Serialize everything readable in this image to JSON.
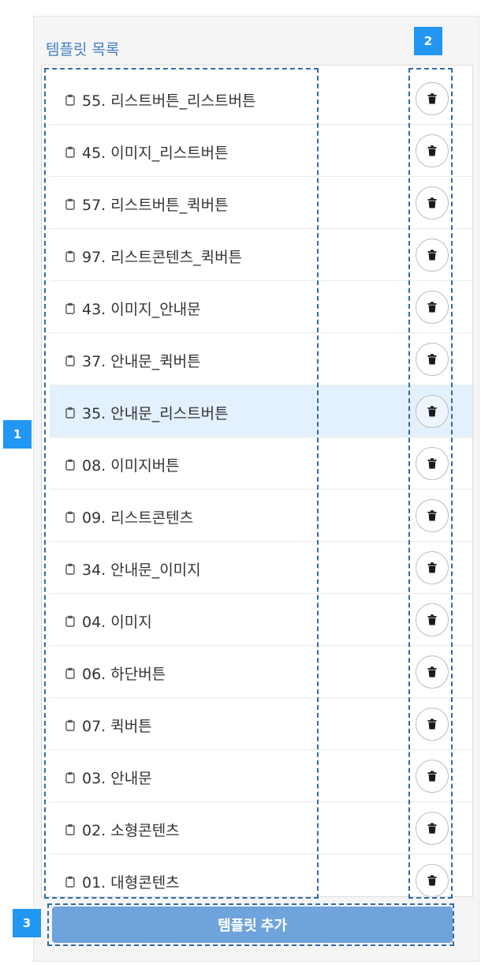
{
  "panel": {
    "title": "템플릿 목록",
    "add_label": "템플릿 추가"
  },
  "icons": {
    "item": "clipboard-icon",
    "delete": "trash-icon"
  },
  "colors": {
    "title": "#3f80c4",
    "add_button": "#6fa3dc",
    "selected_row": "#e3f0fd",
    "annotation": "#2f6aa8",
    "badge": "#2196f3"
  },
  "templates": [
    {
      "label": "55. 리스트버튼_리스트버튼",
      "selected": false
    },
    {
      "label": "45. 이미지_리스트버튼",
      "selected": false
    },
    {
      "label": "57. 리스트버튼_퀵버튼",
      "selected": false
    },
    {
      "label": "97. 리스트콘텐츠_퀵버튼",
      "selected": false
    },
    {
      "label": "43. 이미지_안내문",
      "selected": false
    },
    {
      "label": "37. 안내문_퀵버튼",
      "selected": false
    },
    {
      "label": "35. 안내문_리스트버튼",
      "selected": true
    },
    {
      "label": "08. 이미지버튼",
      "selected": false
    },
    {
      "label": "09. 리스트콘텐츠",
      "selected": false
    },
    {
      "label": "34. 안내문_이미지",
      "selected": false
    },
    {
      "label": "04. 이미지",
      "selected": false
    },
    {
      "label": "06. 하단버튼",
      "selected": false
    },
    {
      "label": "07. 퀵버튼",
      "selected": false
    },
    {
      "label": "03. 안내문",
      "selected": false
    },
    {
      "label": "02. 소형콘텐츠",
      "selected": false
    },
    {
      "label": "01. 대형콘텐츠",
      "selected": false
    }
  ],
  "annotations": {
    "badge1": "1",
    "badge2": "2",
    "badge3": "3"
  }
}
